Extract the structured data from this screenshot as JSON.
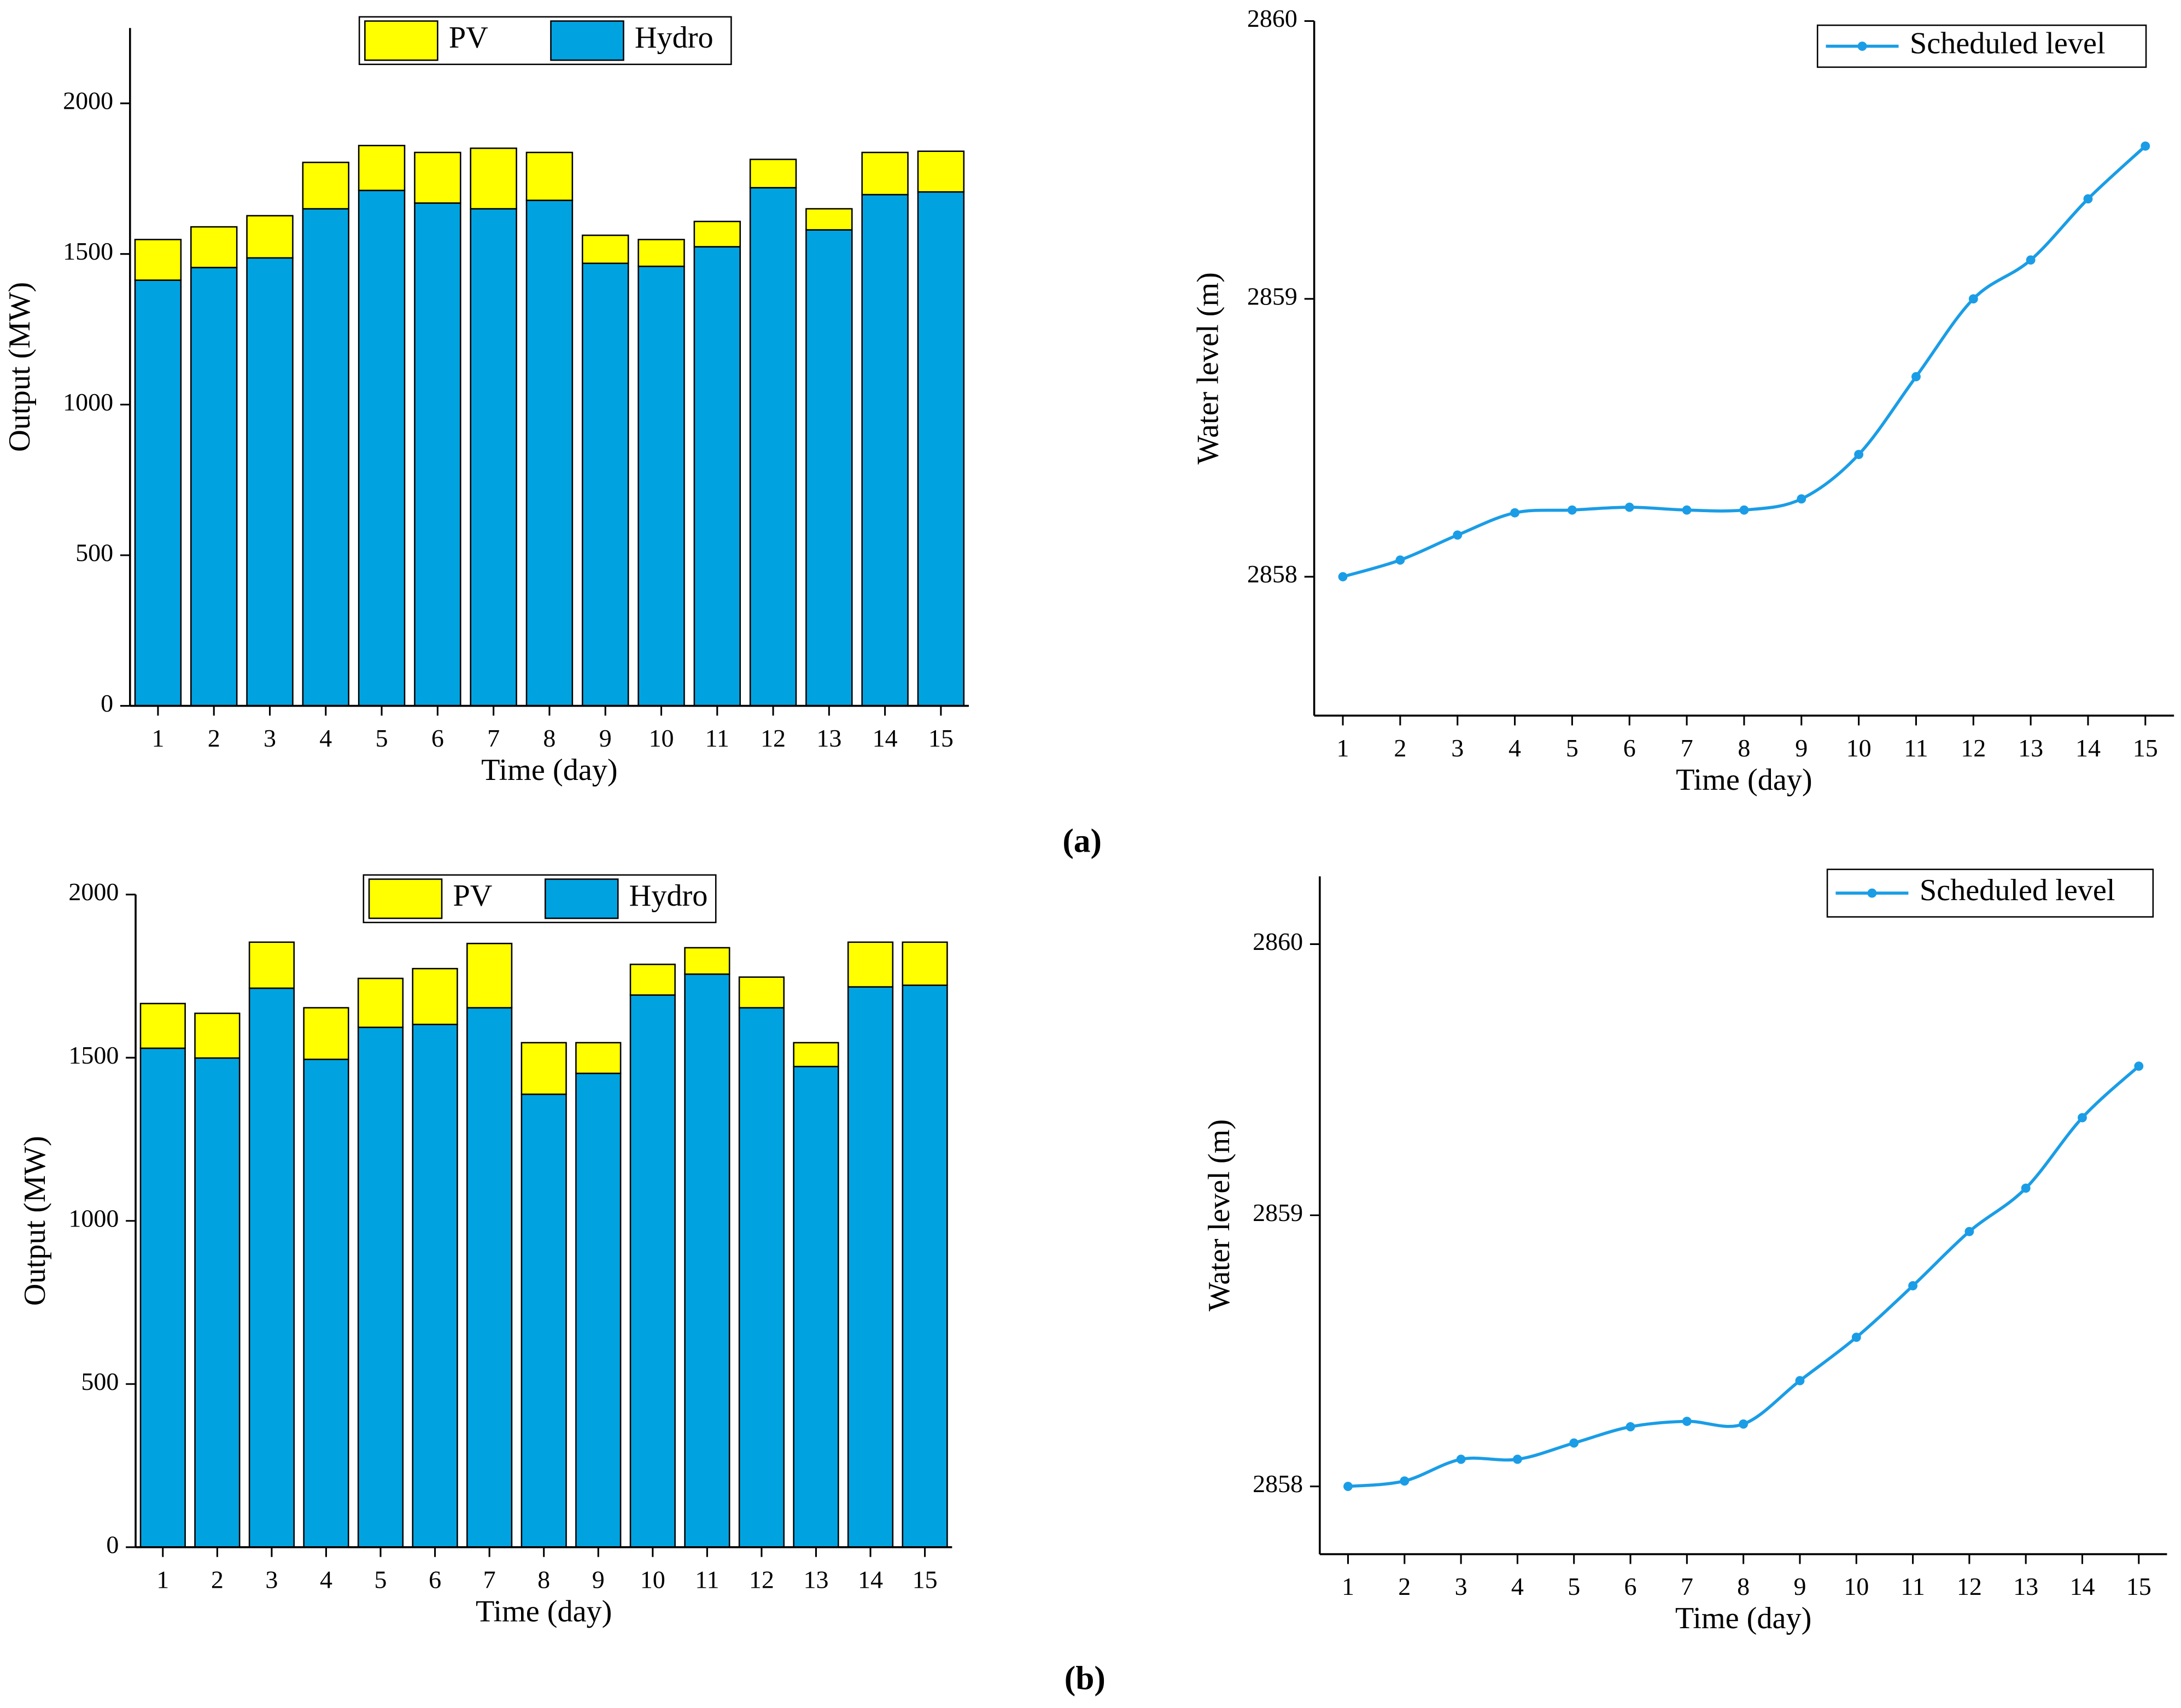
{
  "chart_data": [
    {
      "type": "bar",
      "stacked": true,
      "x_label": "Time (day)",
      "y_label": "Output (MW)",
      "categories": [
        "1",
        "2",
        "3",
        "4",
        "5",
        "6",
        "7",
        "8",
        "9",
        "10",
        "11",
        "12",
        "13",
        "14",
        "15"
      ],
      "series": [
        {
          "name": "Hydro",
          "color": "#00a3e0",
          "values": [
            1413,
            1455,
            1487,
            1650,
            1711,
            1669,
            1650,
            1678,
            1469,
            1459,
            1524,
            1720,
            1580,
            1697,
            1706
          ]
        },
        {
          "name": "PV",
          "color": "#ffff00",
          "values": [
            135,
            135,
            140,
            154,
            149,
            168,
            201,
            159,
            93,
            89,
            84,
            94,
            70,
            140,
            135
          ]
        }
      ],
      "ylim": [
        0,
        2250
      ],
      "yticks": [
        0,
        500,
        1000,
        1500,
        2000
      ]
    },
    {
      "type": "line",
      "x_label": "Time (day)",
      "y_label": "Water level (m)",
      "categories": [
        "1",
        "2",
        "3",
        "4",
        "5",
        "6",
        "7",
        "8",
        "9",
        "10",
        "11",
        "12",
        "13",
        "14",
        "15"
      ],
      "series": [
        {
          "name": "Scheduled level",
          "color": "#1a9de6",
          "values": [
            2858.0,
            2858.06,
            2858.15,
            2858.23,
            2858.24,
            2858.25,
            2858.24,
            2858.24,
            2858.28,
            2858.44,
            2858.72,
            2859.0,
            2859.14,
            2859.36,
            2859.55
          ]
        }
      ],
      "ylim": [
        2857.5,
        2860
      ],
      "yticks": [
        2858,
        2859,
        2860
      ]
    },
    {
      "type": "bar",
      "stacked": true,
      "x_label": "Time (day)",
      "y_label": "Output (MW)",
      "categories": [
        "1",
        "2",
        "3",
        "4",
        "5",
        "6",
        "7",
        "8",
        "9",
        "10",
        "11",
        "12",
        "13",
        "14",
        "15"
      ],
      "series": [
        {
          "name": "Hydro",
          "color": "#00a3e0",
          "values": [
            1529,
            1499,
            1713,
            1495,
            1593,
            1602,
            1653,
            1388,
            1452,
            1692,
            1756,
            1653,
            1473,
            1717,
            1722
          ]
        },
        {
          "name": "PV",
          "color": "#ffff00",
          "values": [
            137,
            137,
            141,
            158,
            150,
            171,
            197,
            158,
            94,
            94,
            81,
            94,
            73,
            137,
            132
          ]
        }
      ],
      "ylim": [
        0,
        2000
      ],
      "yticks": [
        0,
        500,
        1000,
        1500,
        2000
      ]
    },
    {
      "type": "line",
      "x_label": "Time (day)",
      "y_label": "Water level (m)",
      "categories": [
        "1",
        "2",
        "3",
        "4",
        "5",
        "6",
        "7",
        "8",
        "9",
        "10",
        "11",
        "12",
        "13",
        "14",
        "15"
      ],
      "series": [
        {
          "name": "Scheduled level",
          "color": "#1a9de6",
          "values": [
            2858.0,
            2858.02,
            2858.1,
            2858.1,
            2858.16,
            2858.22,
            2858.24,
            2858.23,
            2858.39,
            2858.55,
            2858.74,
            2858.94,
            2859.1,
            2859.36,
            2859.55
          ]
        }
      ],
      "ylim": [
        2857.75,
        2860.25
      ],
      "yticks": [
        2858,
        2859,
        2860
      ]
    }
  ],
  "panel_labels": [
    "(a)",
    "(b)"
  ]
}
